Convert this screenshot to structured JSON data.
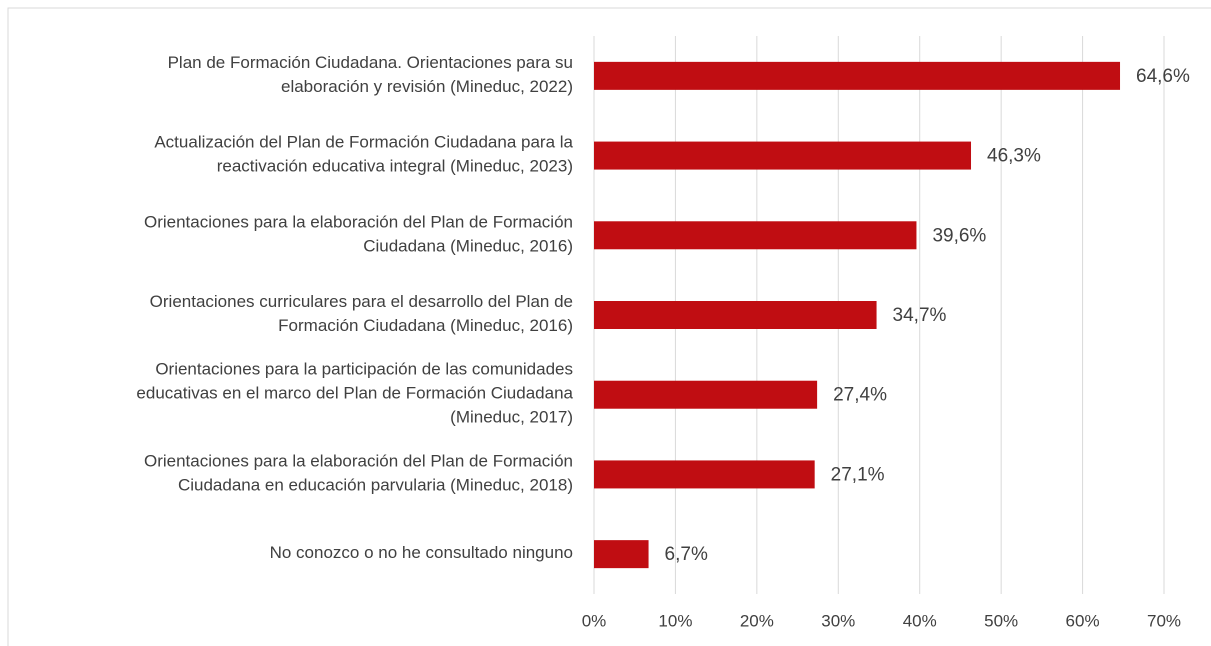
{
  "chart_data": {
    "type": "barh",
    "categories": [
      "Plan de Formación Ciudadana. Orientaciones para su\nelaboración y revisión (Mineduc, 2022)",
      "Actualización del Plan de Formación Ciudadana para la\nreactivación educativa integral (Mineduc, 2023)",
      "Orientaciones para la elaboración del Plan de Formación\nCiudadana (Mineduc, 2016)",
      "Orientaciones curriculares para el desarrollo del Plan de\nFormación Ciudadana (Mineduc, 2016)",
      "Orientaciones para la participación de las comunidades\neducativas en el marco del Plan de Formación Ciudadana\n(Mineduc, 2017)",
      "Orientaciones para la elaboración del Plan de Formación\nCiudadana en educación parvularia (Mineduc, 2018)",
      "No conozco o no he consultado ninguno"
    ],
    "values": [
      64.6,
      46.3,
      39.6,
      34.7,
      27.4,
      27.1,
      6.7
    ],
    "value_labels": [
      "64,6%",
      "46,3%",
      "39,6%",
      "34,7%",
      "27,4%",
      "27,1%",
      "6,7%"
    ],
    "color": "#c00d12",
    "xlim": [
      0,
      70
    ],
    "xticks": [
      {
        "value": 0,
        "label": "0%"
      },
      {
        "value": 10,
        "label": "10%"
      },
      {
        "value": 20,
        "label": "20%"
      },
      {
        "value": 30,
        "label": "30%"
      },
      {
        "value": 40,
        "label": "40%"
      },
      {
        "value": 50,
        "label": "50%"
      },
      {
        "value": 60,
        "label": "60%"
      },
      {
        "value": 70,
        "label": "70%"
      }
    ],
    "grid": true
  }
}
